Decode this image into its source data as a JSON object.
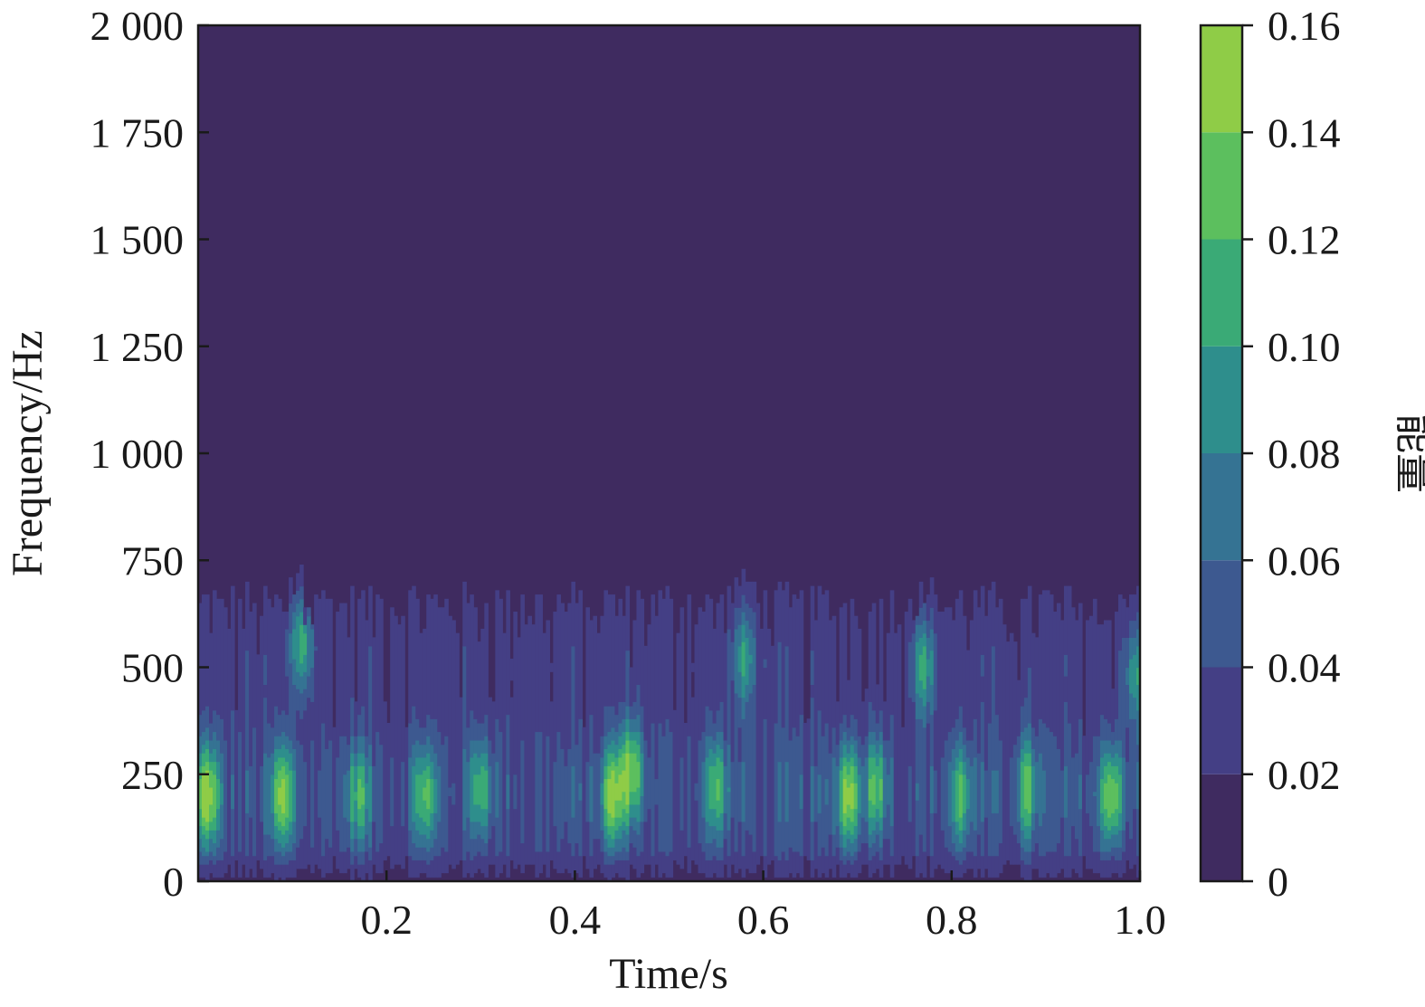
{
  "chart_data": {
    "type": "heatmap",
    "title": "",
    "xlabel": "Time/s",
    "ylabel": "Frequency/Hz",
    "colorbar_label": "能量",
    "xlim": [
      0,
      1.0
    ],
    "ylim": [
      0,
      2000
    ],
    "x_ticks": [
      {
        "value": 0.2,
        "label": "0.2"
      },
      {
        "value": 0.4,
        "label": "0.4"
      },
      {
        "value": 0.6,
        "label": "0.6"
      },
      {
        "value": 0.8,
        "label": "0.8"
      },
      {
        "value": 1.0,
        "label": "1.0"
      }
    ],
    "y_ticks": [
      {
        "value": 0,
        "label": "0"
      },
      {
        "value": 250,
        "label": "250"
      },
      {
        "value": 500,
        "label": "500"
      },
      {
        "value": 750,
        "label": "750"
      },
      {
        "value": 1000,
        "label": "1 000"
      },
      {
        "value": 1250,
        "label": "1 250"
      },
      {
        "value": 1500,
        "label": "1 500"
      },
      {
        "value": 1750,
        "label": "1 750"
      },
      {
        "value": 2000,
        "label": "2 000"
      }
    ],
    "color_levels": [
      0,
      0.02,
      0.04,
      0.06,
      0.08,
      0.1,
      0.12,
      0.14,
      0.16
    ],
    "color_level_labels": [
      "0",
      "0.02",
      "0.04",
      "0.06",
      "0.08",
      "0.10",
      "0.12",
      "0.14",
      "0.16"
    ],
    "colors": [
      "#3f2b60",
      "#443f85",
      "#3d5990",
      "#357393",
      "#2e8e8c",
      "#3aaa76",
      "#5cbf5e",
      "#8fcc47",
      "#bdd132"
    ],
    "energy_hotspots": [
      {
        "time": 0.01,
        "frequency": 200,
        "energy": 0.14
      },
      {
        "time": 0.09,
        "frequency": 200,
        "energy": 0.12
      },
      {
        "time": 0.11,
        "frequency": 560,
        "energy": 0.1
      },
      {
        "time": 0.17,
        "frequency": 200,
        "energy": 0.09
      },
      {
        "time": 0.24,
        "frequency": 200,
        "energy": 0.1
      },
      {
        "time": 0.3,
        "frequency": 220,
        "energy": 0.09
      },
      {
        "time": 0.44,
        "frequency": 200,
        "energy": 0.12
      },
      {
        "time": 0.46,
        "frequency": 260,
        "energy": 0.12
      },
      {
        "time": 0.55,
        "frequency": 220,
        "energy": 0.09
      },
      {
        "time": 0.58,
        "frequency": 520,
        "energy": 0.08
      },
      {
        "time": 0.69,
        "frequency": 200,
        "energy": 0.13
      },
      {
        "time": 0.72,
        "frequency": 220,
        "energy": 0.1
      },
      {
        "time": 0.77,
        "frequency": 500,
        "energy": 0.09
      },
      {
        "time": 0.81,
        "frequency": 200,
        "energy": 0.09
      },
      {
        "time": 0.88,
        "frequency": 220,
        "energy": 0.09
      },
      {
        "time": 0.97,
        "frequency": 200,
        "energy": 0.12
      },
      {
        "time": 0.995,
        "frequency": 480,
        "energy": 0.08
      }
    ]
  }
}
